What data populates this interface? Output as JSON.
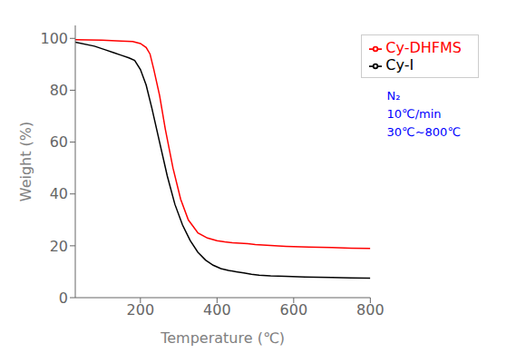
{
  "chart_data": {
    "type": "line",
    "xlabel": "Temperature (℃)",
    "ylabel": "Weight (%)",
    "xlim": [
      30,
      800
    ],
    "ylim": [
      0,
      105
    ],
    "xticks": [
      200,
      400,
      600,
      800
    ],
    "yticks": [
      0,
      20,
      40,
      60,
      80,
      100
    ],
    "grid": false,
    "legend": "upper right",
    "annotations": [
      {
        "text": "N₂",
        "color": "#0000ff"
      },
      {
        "text": "10℃/min",
        "color": "#0000ff"
      },
      {
        "text": "30℃~800℃",
        "color": "#0000ff"
      }
    ],
    "series": [
      {
        "name": "Cy-I",
        "color": "black",
        "x": [
          30,
          80,
          110,
          130,
          150,
          170,
          185,
          200,
          215,
          230,
          250,
          270,
          290,
          310,
          330,
          350,
          370,
          390,
          410,
          430,
          450,
          470,
          490,
          510,
          540,
          580,
          630,
          700,
          750,
          800
        ],
        "values": [
          98.5,
          97.0,
          95.5,
          94.5,
          93.5,
          92.5,
          91.5,
          88.0,
          82.0,
          73.0,
          60.0,
          47.0,
          36.0,
          28.0,
          22.0,
          17.5,
          14.5,
          12.5,
          11.2,
          10.5,
          10.0,
          9.5,
          9.0,
          8.7,
          8.4,
          8.2,
          8.0,
          7.8,
          7.6,
          7.5
        ]
      },
      {
        "name": "Cy-DHFMS",
        "color": "red",
        "x": [
          30,
          100,
          150,
          180,
          200,
          215,
          225,
          235,
          250,
          265,
          285,
          305,
          325,
          350,
          375,
          400,
          420,
          440,
          460,
          480,
          500,
          520,
          540,
          580,
          640,
          700,
          750,
          800
        ],
        "values": [
          99.5,
          99.3,
          99.0,
          98.8,
          98.0,
          96.5,
          94.0,
          88.0,
          78.0,
          65.0,
          50.0,
          38.0,
          30.0,
          25.0,
          23.0,
          22.0,
          21.5,
          21.2,
          21.0,
          20.8,
          20.5,
          20.3,
          20.1,
          19.8,
          19.5,
          19.3,
          19.1,
          19.0
        ]
      }
    ]
  }
}
